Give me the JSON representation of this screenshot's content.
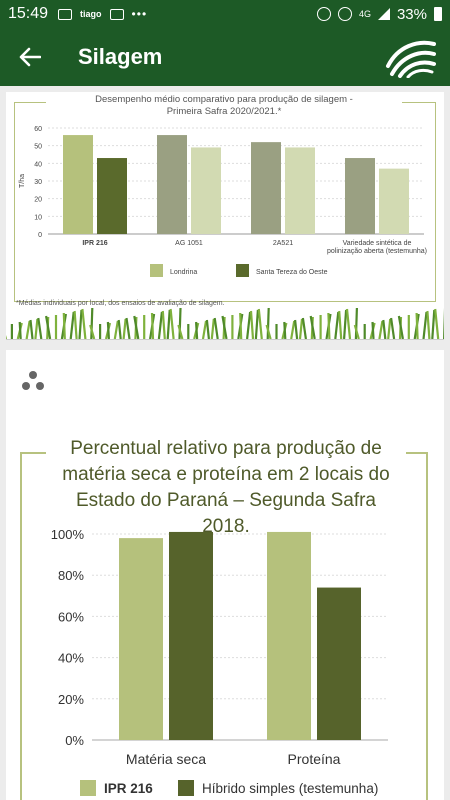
{
  "status_bar": {
    "time": "15:49",
    "carrier": "tiago",
    "network": "4G",
    "battery": "33%"
  },
  "app_bar": {
    "title": "Silagem"
  },
  "chart1": {
    "title_line1": "Desempenho médio comparativo para produção de silagem -",
    "title_line2": "Primeira Safra 2020/2021.*",
    "footnote": "*Médias individuais por local, dos ensaios de avaliação de silagem."
  },
  "chart2": {
    "title_line1": "Percentual relativo para produção de",
    "title_line2": "matéria seca e proteína em 2 locais do",
    "title_line3": "Estado do Paraná – Segunda Safra 2018."
  },
  "chart_data": [
    {
      "type": "bar",
      "title": "Desempenho médio comparativo para produção de silagem - Primeira Safra 2020/2021.*",
      "ylabel": "T/ha",
      "ylim": [
        0,
        60
      ],
      "yticks": [
        0,
        10,
        20,
        30,
        40,
        50,
        60
      ],
      "categories": [
        "IPR 216",
        "AG 1051",
        "2A521",
        "Variedade sintética de polinização aberta (testemunha)"
      ],
      "category_lines": [
        [
          "IPR 216"
        ],
        [
          "AG 1051"
        ],
        [
          "2A521"
        ],
        [
          "Variedade sintética de",
          "polinização aberta (testemunha)"
        ]
      ],
      "series": [
        {
          "name": "Londrina",
          "values": [
            56,
            56,
            52,
            43
          ]
        },
        {
          "name": "Santa Tereza do Oeste",
          "values": [
            43,
            49,
            49,
            37
          ]
        }
      ],
      "bar_colors": [
        [
          "#b5c17c",
          "#5a6a2c"
        ],
        [
          "#9aa082",
          "#d2dab2"
        ],
        [
          "#9aa082",
          "#d2dab2"
        ],
        [
          "#9aa082",
          "#d2dab2"
        ]
      ],
      "legend_colors": [
        "#b5c17c",
        "#5a6a2c"
      ],
      "legend_position": "bottom",
      "grid": true
    },
    {
      "type": "bar",
      "title": "Percentual relativo para produção de matéria seca e proteína em 2 locais do Estado do Paraná – Segunda Safra 2018.",
      "ylim": [
        0,
        100
      ],
      "yticks": [
        "0%",
        "20%",
        "40%",
        "60%",
        "80%",
        "100%"
      ],
      "categories": [
        "Matéria seca",
        "Proteína"
      ],
      "series": [
        {
          "name": "IPR 216",
          "values": [
            98,
            101
          ]
        },
        {
          "name": "Híbrido simples (testemunha)",
          "values": [
            101,
            74
          ]
        }
      ],
      "series_colors": [
        "#b5c17c",
        "#56632b"
      ],
      "legend_position": "bottom",
      "grid": true
    }
  ]
}
